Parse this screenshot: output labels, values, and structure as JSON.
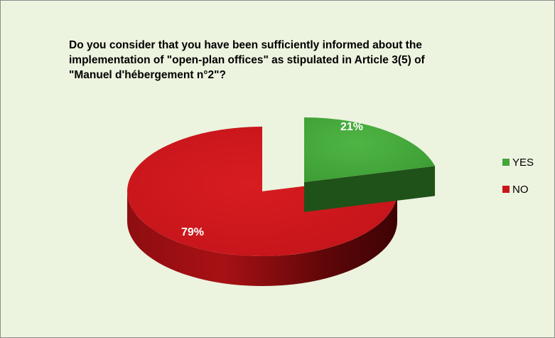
{
  "chart_data": {
    "type": "pie",
    "title_lines": [
      "Do you consider that you have been sufficiently informed about the",
      "implementation of \"open-plan offices\" as stipulated in Article 3(5) of",
      "\"Manuel d'hébergement n°2\"?"
    ],
    "categories": [
      "YES",
      "NO"
    ],
    "values": [
      21,
      79
    ],
    "value_labels": [
      "21%",
      "79%"
    ],
    "colors": [
      "#43a53a",
      "#c9161a"
    ],
    "exploded": "YES",
    "style": "3d",
    "legend_position": "right"
  }
}
